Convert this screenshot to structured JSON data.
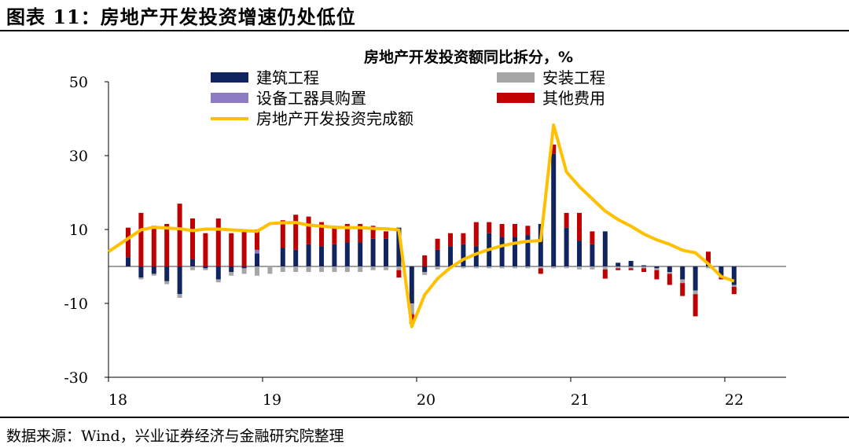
{
  "figure": {
    "title": "图表 11：房地产开发投资增速仍处低位",
    "source": "数据来源：Wind，兴业证券经济与金融研究院整理"
  },
  "chart_data": {
    "type": "bar",
    "subtype": "stacked-bar-with-line",
    "title": "房地产开发投资额同比拆分，%",
    "ylim": [
      -30,
      50
    ],
    "yticks": [
      50,
      30,
      10,
      -10,
      -30
    ],
    "xtick_labels": [
      "18",
      "19",
      "20",
      "21",
      "22"
    ],
    "legend": {
      "placement": "top",
      "items": [
        {
          "name": "建筑工程",
          "kind": "bar",
          "color": "#10255f"
        },
        {
          "name": "安装工程",
          "kind": "bar",
          "color": "#a6a6a6"
        },
        {
          "name": "设备工器具购置",
          "kind": "bar",
          "color": "#8e7cc3"
        },
        {
          "name": "其他费用",
          "kind": "bar",
          "color": "#c00000"
        },
        {
          "name": "房地产开发投资完成额",
          "kind": "line",
          "color": "#ffc000"
        }
      ]
    },
    "periods": [
      "2018-01/02",
      "2018-03",
      "2018-04",
      "2018-05",
      "2018-06",
      "2018-07",
      "2018-08",
      "2018-09",
      "2018-10",
      "2018-11",
      "2018-12",
      "2019-01/02",
      "2019-03",
      "2019-04",
      "2019-05",
      "2019-06",
      "2019-07",
      "2019-08",
      "2019-09",
      "2019-10",
      "2019-11",
      "2019-12",
      "2020-01/02",
      "2020-03",
      "2020-04",
      "2020-05",
      "2020-06",
      "2020-07",
      "2020-08",
      "2020-09",
      "2020-10",
      "2020-11",
      "2020-12",
      "2021-01/02",
      "2021-03",
      "2021-04",
      "2021-05",
      "2021-06",
      "2021-07",
      "2021-08",
      "2021-09",
      "2021-10",
      "2021-11",
      "2021-12",
      "2022-01/02",
      "2022-03",
      "2022-04",
      "2022-05"
    ],
    "series": [
      {
        "name": "建筑工程",
        "values": [
          2.5,
          -3.0,
          -2.0,
          -4.0,
          -7.5,
          2.0,
          -0.5,
          -3.5,
          -1.5,
          -0.5,
          3.5,
          0,
          5.0,
          4.5,
          6.0,
          5.5,
          6.0,
          6.5,
          6.5,
          7.5,
          7.5,
          10.5,
          -10.0,
          -1.5,
          4.5,
          5.5,
          6.0,
          5.5,
          9.0,
          8.0,
          8.0,
          8.5,
          11.5,
          30.5,
          10.5,
          7.0,
          6.0,
          9.5,
          1.0,
          1.5,
          0.3,
          -0.5,
          -1.5,
          -3.5,
          -6.5,
          1.0,
          -2.5,
          -5.0
        ]
      },
      {
        "name": "安装工程",
        "values": [
          0,
          -0.5,
          -0.5,
          -0.8,
          -1.0,
          -1.0,
          -0.5,
          -0.8,
          -1.0,
          -1.5,
          -2.5,
          -2.0,
          -1.5,
          -1.5,
          -1.5,
          -1.5,
          -1.5,
          -1.5,
          -1.5,
          -1.0,
          -1.0,
          -1.0,
          -2.5,
          -0.8,
          -0.8,
          -0.5,
          -0.5,
          -0.5,
          -0.5,
          -0.5,
          -0.5,
          -0.5,
          -0.5,
          -0.5,
          -0.5,
          -0.8,
          -0.8,
          -0.8,
          -0.5,
          -0.5,
          -0.5,
          -0.5,
          -0.5,
          -1.0,
          -1.0,
          -0.5,
          -0.5,
          -0.5
        ]
      },
      {
        "name": "设备工器具购置",
        "values": [
          0,
          0,
          0,
          0,
          0,
          0,
          0,
          0,
          0,
          0,
          1.0,
          0,
          0,
          0,
          0,
          0,
          0,
          0,
          0,
          0,
          0,
          0,
          -0.5,
          0,
          0,
          0,
          0,
          0,
          0,
          0,
          0,
          0,
          0,
          0,
          0,
          0,
          0,
          0,
          0,
          0,
          0,
          0,
          0,
          0,
          0,
          0,
          0,
          0
        ]
      },
      {
        "name": "其他费用",
        "values": [
          8.0,
          14.5,
          11.0,
          11.5,
          17.0,
          11.0,
          9.0,
          13.0,
          9.0,
          10.0,
          5.5,
          0,
          7.5,
          9.5,
          7.5,
          6.5,
          5.0,
          5.0,
          5.0,
          3.5,
          2.0,
          -2.0,
          -2.5,
          3.0,
          3.0,
          3.5,
          3.0,
          6.5,
          3.0,
          3.5,
          3.5,
          2.5,
          -1.5,
          2.5,
          4.0,
          7.5,
          3.5,
          -2.5,
          -0.5,
          -0.5,
          -1.0,
          -2.5,
          -3.0,
          -3.5,
          -6.0,
          3.0,
          -0.5,
          -2.0
        ]
      },
      {
        "name": "房地产开发投资完成额",
        "values": [
          4.0,
          9.9,
          10.6,
          10.4,
          10.2,
          9.7,
          10.1,
          10.1,
          9.9,
          9.7,
          9.5,
          11.6,
          11.8,
          11.9,
          11.2,
          10.9,
          10.6,
          10.5,
          10.5,
          10.3,
          10.2,
          9.9,
          -16.3,
          -7.7,
          -3.3,
          -0.3,
          1.9,
          3.4,
          4.6,
          5.6,
          6.3,
          6.8,
          7.0,
          38.3,
          25.6,
          21.6,
          18.3,
          15.0,
          12.7,
          10.9,
          8.8,
          7.2,
          6.0,
          4.4,
          3.7,
          0.7,
          -2.7,
          -4.0
        ]
      }
    ]
  }
}
